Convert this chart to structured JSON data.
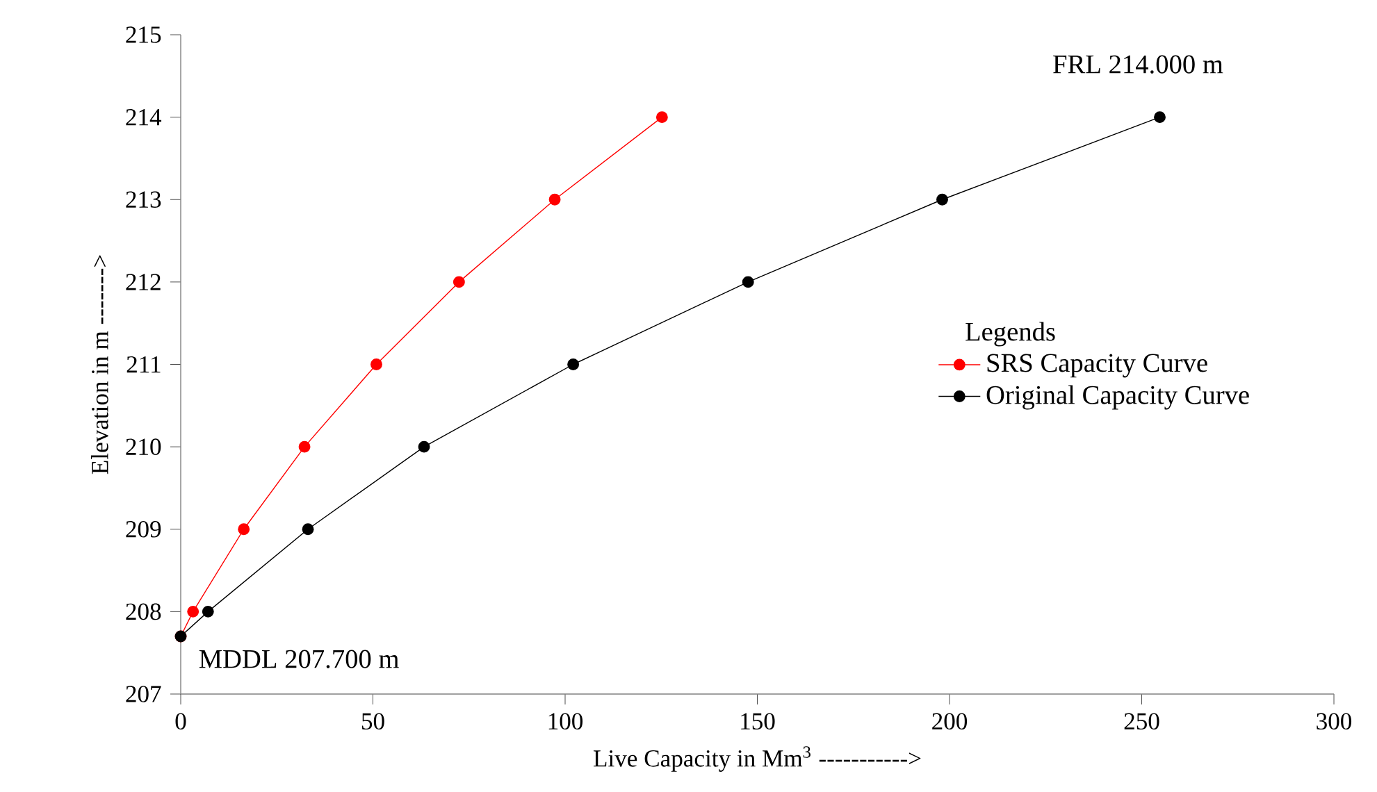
{
  "chart_data": {
    "type": "line",
    "xlabel": "Live Capacity in Mm$^{3}$ ----------->",
    "ylabel": "Elevation in m ------->",
    "legend_title": "Legends",
    "legend": "right",
    "marker": "circle",
    "grid": false,
    "xlim": [
      0,
      300
    ],
    "xticks": [
      0,
      50,
      100,
      150,
      200,
      250,
      300
    ],
    "ylim": [
      207,
      215
    ],
    "yticks": [
      207,
      208,
      209,
      210,
      211,
      212,
      213,
      214,
      215
    ],
    "series": [
      {
        "name": "SRS Capacity Curve",
        "color": "#ff0000",
        "x": [
          0,
          3.2,
          16.4,
          32.2,
          50.9,
          72.4,
          97.3,
          125.2
        ],
        "values": [
          207.7,
          208,
          209,
          210,
          211,
          212,
          213,
          214
        ]
      },
      {
        "name": "Original Capacity Curve",
        "color": "#000000",
        "x": [
          0,
          7.1,
          33.1,
          63.3,
          102.1,
          147.6,
          198.1,
          254.7
        ],
        "values": [
          207.7,
          208,
          209,
          210,
          211,
          212,
          213,
          214
        ]
      }
    ],
    "annotations": [
      "FRL 214.000  m",
      "MDDL  207.700  m"
    ]
  }
}
